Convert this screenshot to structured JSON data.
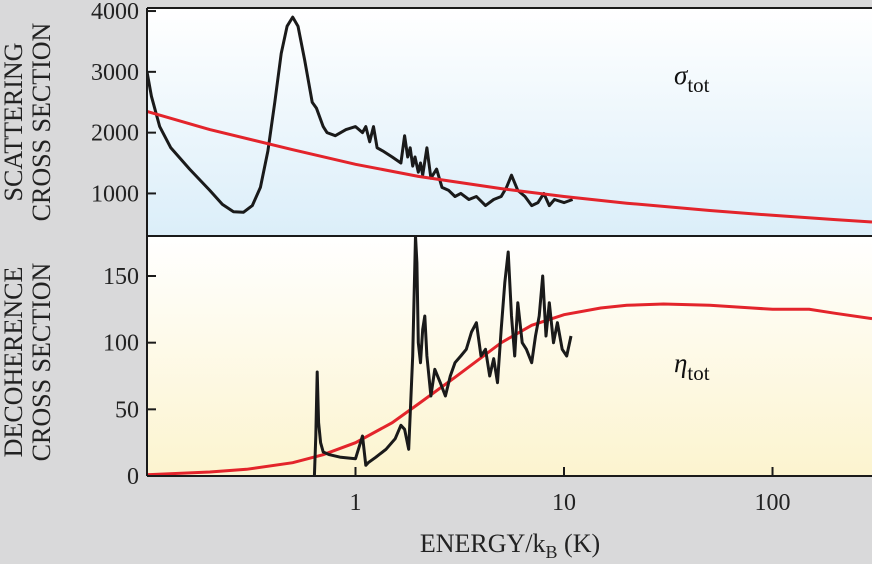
{
  "colors": {
    "background": "#d9d9da",
    "top_panel_top": "#ffffff",
    "top_panel_bottom": "#dbeef9",
    "bottom_panel_top": "#ffffff",
    "bottom_panel_bottom": "#fcf4cf",
    "measured_line": "#1a1a1a",
    "model_line": "#e3242b",
    "frame": "#1a1a1a"
  },
  "chart_data": [
    {
      "type": "line",
      "panel": "top",
      "ylabel_line1": "SCATTERING",
      "ylabel_line2": "CROSS SECTION",
      "annotation": {
        "symbol": "σ",
        "subscript": "tot"
      },
      "xscale": "log",
      "xlim": [
        0.1,
        300
      ],
      "ylim": [
        300,
        4050
      ],
      "yticks": [
        {
          "value": 1000,
          "label": "1000"
        },
        {
          "value": 2000,
          "label": "2000"
        },
        {
          "value": 3000,
          "label": "3000"
        },
        {
          "value": 4000,
          "label": "4000"
        }
      ],
      "series": [
        {
          "name": "measured",
          "x": [
            0.1,
            0.105,
            0.115,
            0.13,
            0.16,
            0.2,
            0.23,
            0.26,
            0.29,
            0.32,
            0.35,
            0.38,
            0.41,
            0.44,
            0.47,
            0.5,
            0.53,
            0.57,
            0.62,
            0.65,
            0.7,
            0.73,
            0.8,
            0.9,
            1.0,
            1.08,
            1.12,
            1.17,
            1.22,
            1.27,
            1.35,
            1.5,
            1.65,
            1.72,
            1.78,
            1.83,
            1.88,
            1.93,
            2.0,
            2.05,
            2.1,
            2.2,
            2.3,
            2.45,
            2.6,
            2.8,
            3.0,
            3.2,
            3.5,
            3.8,
            4.2,
            4.6,
            5.0,
            5.3,
            5.6,
            6.0,
            6.5,
            7.0,
            7.5,
            8.0,
            8.5,
            9.0,
            10.0,
            11.0
          ],
          "y": [
            3000,
            2600,
            2100,
            1750,
            1400,
            1050,
            820,
            700,
            690,
            800,
            1100,
            1700,
            2500,
            3300,
            3750,
            3900,
            3750,
            3200,
            2500,
            2400,
            2100,
            2000,
            1950,
            2050,
            2100,
            2000,
            2100,
            1850,
            2100,
            1750,
            1700,
            1600,
            1500,
            1950,
            1600,
            1750,
            1450,
            1600,
            1350,
            1500,
            1300,
            1750,
            1250,
            1400,
            1100,
            1050,
            950,
            1000,
            900,
            950,
            800,
            900,
            950,
            1100,
            1300,
            1050,
            950,
            800,
            850,
            1000,
            800,
            900,
            850,
            900
          ]
        },
        {
          "name": "model",
          "x": [
            0.1,
            0.2,
            0.5,
            1,
            2,
            5,
            10,
            20,
            50,
            100,
            200,
            300
          ],
          "y": [
            2350,
            2050,
            1720,
            1480,
            1280,
            1080,
            950,
            840,
            720,
            640,
            570,
            530
          ]
        }
      ]
    },
    {
      "type": "line",
      "panel": "bottom",
      "ylabel_line1": "DECOHERENCE",
      "ylabel_line2": "CROSS SECTION",
      "annotation": {
        "symbol": "η",
        "subscript": "tot"
      },
      "xlabel": "ENERGY/k",
      "xlabel_subscript": "B",
      "xlabel_suffix": " (K)",
      "xscale": "log",
      "xlim": [
        0.1,
        300
      ],
      "ylim": [
        0,
        180
      ],
      "xticks": [
        {
          "value": 1,
          "label": "1"
        },
        {
          "value": 10,
          "label": "10"
        },
        {
          "value": 100,
          "label": "100"
        }
      ],
      "yticks": [
        {
          "value": 0,
          "label": "0"
        },
        {
          "value": 50,
          "label": "50"
        },
        {
          "value": 100,
          "label": "100"
        },
        {
          "value": 150,
          "label": "150"
        }
      ],
      "series": [
        {
          "name": "measured",
          "x": [
            0.635,
            0.645,
            0.655,
            0.665,
            0.68,
            0.7,
            0.75,
            0.85,
            1.0,
            1.08,
            1.12,
            1.15,
            1.25,
            1.4,
            1.55,
            1.65,
            1.72,
            1.8,
            1.88,
            1.94,
            1.97,
            2.0,
            2.05,
            2.1,
            2.15,
            2.2,
            2.3,
            2.4,
            2.55,
            2.7,
            2.85,
            3.0,
            3.2,
            3.4,
            3.6,
            3.8,
            4.0,
            4.2,
            4.4,
            4.6,
            4.8,
            5.0,
            5.2,
            5.4,
            5.6,
            5.8,
            6.0,
            6.3,
            6.6,
            7.0,
            7.3,
            7.6,
            7.9,
            8.2,
            8.5,
            8.9,
            9.3,
            9.8,
            10.3,
            10.8
          ],
          "y": [
            0,
            30,
            78,
            40,
            25,
            18,
            16,
            14,
            13,
            30,
            8,
            10,
            14,
            20,
            28,
            38,
            35,
            20,
            90,
            180,
            160,
            100,
            85,
            110,
            120,
            90,
            60,
            80,
            70,
            60,
            75,
            85,
            90,
            95,
            108,
            115,
            90,
            95,
            75,
            88,
            70,
            110,
            145,
            168,
            120,
            90,
            130,
            100,
            95,
            85,
            105,
            120,
            150,
            105,
            130,
            100,
            115,
            95,
            90,
            105
          ]
        },
        {
          "name": "model",
          "x": [
            0.1,
            0.2,
            0.3,
            0.5,
            0.7,
            1,
            1.5,
            2,
            3,
            5,
            7,
            10,
            15,
            20,
            30,
            50,
            80,
            100,
            150,
            200,
            300
          ],
          "y": [
            1,
            3,
            5,
            10,
            16,
            25,
            40,
            54,
            74,
            100,
            113,
            121,
            126,
            128,
            129,
            128,
            126,
            125,
            125,
            122,
            118
          ]
        }
      ]
    }
  ]
}
